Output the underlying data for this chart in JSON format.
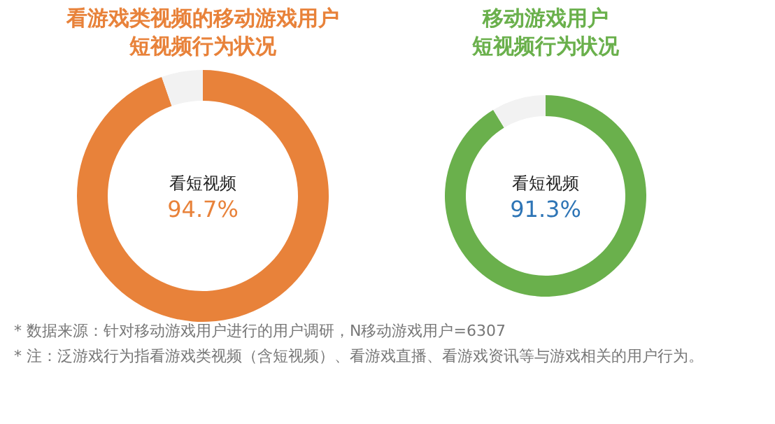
{
  "chart_data": [
    {
      "type": "donut",
      "title": [
        "看游戏类视频的移动游戏用户",
        "短视频行为状况"
      ],
      "categories": [
        "看短视频",
        null
      ],
      "values": [
        94.7,
        5.3
      ],
      "colors": [
        "#e8823a",
        "#f2f2f2"
      ],
      "value_labels": [
        "94.7%",
        null
      ],
      "annotations": [
        "* 数据来源：针对移动游戏用户进行的用户调研，N移动游戏用户=6307",
        "* 注：泛游戏行为指看游戏类视频（含短视频）、看游戏直播、看游戏资讯等与游戏相关的用户行为。"
      ]
    },
    {
      "type": "donut",
      "title": [
        "移动游戏用户",
        "短视频行为状况"
      ],
      "categories": [
        "看短视频",
        null
      ],
      "values": [
        91.3,
        8.7
      ],
      "colors": [
        "#6ab04c",
        "#f2f2f2"
      ],
      "value_labels": [
        "91.3%",
        null
      ]
    }
  ]
}
